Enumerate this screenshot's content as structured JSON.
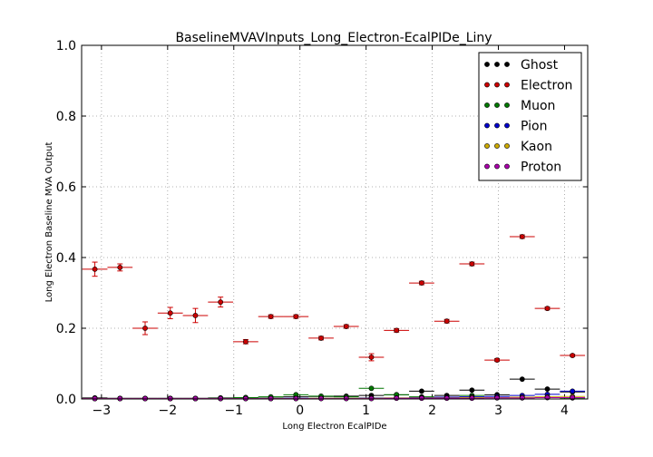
{
  "chart_data": {
    "type": "scatter",
    "title": "BaselineMVAVInputs_Long_Electron-EcalPIDe_Liny",
    "xlabel": "Long Electron EcalPIDe",
    "ylabel": "Long Electron Baseline MVA Output",
    "xlim": [
      -3.3,
      4.35
    ],
    "ylim": [
      0.0,
      1.0
    ],
    "xticks": [
      {
        "value": -3,
        "label": "−3"
      },
      {
        "value": -2,
        "label": "−2"
      },
      {
        "value": -1,
        "label": "−1"
      },
      {
        "value": 0,
        "label": "0"
      },
      {
        "value": 1,
        "label": "1"
      },
      {
        "value": 2,
        "label": "2"
      },
      {
        "value": 3,
        "label": "3"
      },
      {
        "value": 4,
        "label": "4"
      }
    ],
    "yticks": [
      {
        "value": 0.0,
        "label": "0.0"
      },
      {
        "value": 0.2,
        "label": "0.2"
      },
      {
        "value": 0.4,
        "label": "0.4"
      },
      {
        "value": 0.6,
        "label": "0.6"
      },
      {
        "value": 0.8,
        "label": "0.8"
      },
      {
        "value": 1.0,
        "label": "1.0"
      }
    ],
    "grid": true,
    "legend_position": "top-right",
    "x_bin_half_width": 0.19,
    "series": [
      {
        "name": "Ghost",
        "color": "#000000",
        "points": [
          {
            "x": -3.1,
            "y": 0.003
          },
          {
            "x": -2.72,
            "y": 0.002
          },
          {
            "x": -2.34,
            "y": 0.002
          },
          {
            "x": -1.96,
            "y": 0.002
          },
          {
            "x": -1.58,
            "y": 0.002
          },
          {
            "x": -1.2,
            "y": 0.003
          },
          {
            "x": -0.82,
            "y": 0.004
          },
          {
            "x": -0.44,
            "y": 0.005
          },
          {
            "x": -0.06,
            "y": 0.006
          },
          {
            "x": 0.32,
            "y": 0.007
          },
          {
            "x": 0.7,
            "y": 0.008
          },
          {
            "x": 1.08,
            "y": 0.01
          },
          {
            "x": 1.46,
            "y": 0.012
          },
          {
            "x": 1.84,
            "y": 0.022
          },
          {
            "x": 2.22,
            "y": 0.01
          },
          {
            "x": 2.6,
            "y": 0.025
          },
          {
            "x": 2.98,
            "y": 0.012
          },
          {
            "x": 3.36,
            "y": 0.056
          },
          {
            "x": 3.74,
            "y": 0.028
          },
          {
            "x": 4.12,
            "y": 0.02
          }
        ]
      },
      {
        "name": "Electron",
        "color": "#cc0000",
        "points": [
          {
            "x": -3.1,
            "y": 0.367,
            "err": 0.02
          },
          {
            "x": -2.72,
            "y": 0.372,
            "err": 0.01
          },
          {
            "x": -2.34,
            "y": 0.2,
            "err": 0.018
          },
          {
            "x": -1.96,
            "y": 0.243,
            "err": 0.016
          },
          {
            "x": -1.58,
            "y": 0.236,
            "err": 0.02
          },
          {
            "x": -1.2,
            "y": 0.274,
            "err": 0.014
          },
          {
            "x": -0.82,
            "y": 0.162,
            "err": 0.006
          },
          {
            "x": -0.44,
            "y": 0.233,
            "err": 0.005
          },
          {
            "x": -0.06,
            "y": 0.233,
            "err": 0.005
          },
          {
            "x": 0.32,
            "y": 0.172,
            "err": 0.005
          },
          {
            "x": 0.7,
            "y": 0.205,
            "err": 0.005
          },
          {
            "x": 1.08,
            "y": 0.118,
            "err": 0.01
          },
          {
            "x": 1.46,
            "y": 0.194,
            "err": 0.005
          },
          {
            "x": 1.84,
            "y": 0.328,
            "err": 0.005
          },
          {
            "x": 2.22,
            "y": 0.22,
            "err": 0.005
          },
          {
            "x": 2.6,
            "y": 0.382,
            "err": 0.005
          },
          {
            "x": 2.98,
            "y": 0.11,
            "err": 0.004
          },
          {
            "x": 3.36,
            "y": 0.459,
            "err": 0.005
          },
          {
            "x": 3.74,
            "y": 0.256,
            "err": 0.004
          },
          {
            "x": 4.12,
            "y": 0.123,
            "err": 0.003
          }
        ]
      },
      {
        "name": "Muon",
        "color": "#007700",
        "points": [
          {
            "x": -3.1,
            "y": 0.001
          },
          {
            "x": -2.72,
            "y": 0.001
          },
          {
            "x": -2.34,
            "y": 0.001
          },
          {
            "x": -1.96,
            "y": 0.001
          },
          {
            "x": -1.58,
            "y": 0.001
          },
          {
            "x": -1.2,
            "y": 0.002
          },
          {
            "x": -0.82,
            "y": 0.004
          },
          {
            "x": -0.44,
            "y": 0.006
          },
          {
            "x": -0.06,
            "y": 0.012
          },
          {
            "x": 0.32,
            "y": 0.008
          },
          {
            "x": 0.7,
            "y": 0.006
          },
          {
            "x": 1.08,
            "y": 0.03
          },
          {
            "x": 1.46,
            "y": 0.012
          },
          {
            "x": 1.84,
            "y": 0.006
          },
          {
            "x": 2.22,
            "y": 0.004
          },
          {
            "x": 2.6,
            "y": 0.01
          },
          {
            "x": 2.98,
            "y": 0.004
          },
          {
            "x": 3.36,
            "y": 0.004
          },
          {
            "x": 3.74,
            "y": 0.004
          },
          {
            "x": 4.12,
            "y": 0.003
          }
        ]
      },
      {
        "name": "Pion",
        "color": "#0000cc",
        "points": [
          {
            "x": -3.1,
            "y": 0.001
          },
          {
            "x": -2.72,
            "y": 0.001
          },
          {
            "x": -2.34,
            "y": 0.001
          },
          {
            "x": -1.96,
            "y": 0.001
          },
          {
            "x": -1.58,
            "y": 0.001
          },
          {
            "x": -1.2,
            "y": 0.001
          },
          {
            "x": -0.82,
            "y": 0.001
          },
          {
            "x": -0.44,
            "y": 0.001
          },
          {
            "x": -0.06,
            "y": 0.002
          },
          {
            "x": 0.32,
            "y": 0.002
          },
          {
            "x": 0.7,
            "y": 0.002
          },
          {
            "x": 1.08,
            "y": 0.003
          },
          {
            "x": 1.46,
            "y": 0.003
          },
          {
            "x": 1.84,
            "y": 0.004
          },
          {
            "x": 2.22,
            "y": 0.005
          },
          {
            "x": 2.6,
            "y": 0.006
          },
          {
            "x": 2.98,
            "y": 0.007
          },
          {
            "x": 3.36,
            "y": 0.01
          },
          {
            "x": 3.74,
            "y": 0.013
          },
          {
            "x": 4.12,
            "y": 0.022
          }
        ]
      },
      {
        "name": "Kaon",
        "color": "#ccaa00",
        "points": [
          {
            "x": -3.1,
            "y": 0.001
          },
          {
            "x": -2.72,
            "y": 0.001
          },
          {
            "x": -2.34,
            "y": 0.001
          },
          {
            "x": -1.96,
            "y": 0.001
          },
          {
            "x": -1.58,
            "y": 0.001
          },
          {
            "x": -1.2,
            "y": 0.001
          },
          {
            "x": -0.82,
            "y": 0.001
          },
          {
            "x": -0.44,
            "y": 0.001
          },
          {
            "x": -0.06,
            "y": 0.001
          },
          {
            "x": 0.32,
            "y": 0.002
          },
          {
            "x": 0.7,
            "y": 0.002
          },
          {
            "x": 1.08,
            "y": 0.002
          },
          {
            "x": 1.46,
            "y": 0.003
          },
          {
            "x": 1.84,
            "y": 0.003
          },
          {
            "x": 2.22,
            "y": 0.003
          },
          {
            "x": 2.6,
            "y": 0.004
          },
          {
            "x": 2.98,
            "y": 0.004
          },
          {
            "x": 3.36,
            "y": 0.005
          },
          {
            "x": 3.74,
            "y": 0.006
          },
          {
            "x": 4.12,
            "y": 0.007
          }
        ]
      },
      {
        "name": "Proton",
        "color": "#aa00aa",
        "points": [
          {
            "x": -3.1,
            "y": 0.001
          },
          {
            "x": -2.72,
            "y": 0.001
          },
          {
            "x": -2.34,
            "y": 0.001
          },
          {
            "x": -1.96,
            "y": 0.001
          },
          {
            "x": -1.58,
            "y": 0.001
          },
          {
            "x": -1.2,
            "y": 0.001
          },
          {
            "x": -0.82,
            "y": 0.001
          },
          {
            "x": -0.44,
            "y": 0.001
          },
          {
            "x": -0.06,
            "y": 0.001
          },
          {
            "x": 0.32,
            "y": 0.001
          },
          {
            "x": 0.7,
            "y": 0.001
          },
          {
            "x": 1.08,
            "y": 0.001
          },
          {
            "x": 1.46,
            "y": 0.002
          },
          {
            "x": 1.84,
            "y": 0.002
          },
          {
            "x": 2.22,
            "y": 0.002
          },
          {
            "x": 2.6,
            "y": 0.002
          },
          {
            "x": 2.98,
            "y": 0.003
          },
          {
            "x": 3.36,
            "y": 0.003
          },
          {
            "x": 3.74,
            "y": 0.004
          },
          {
            "x": 4.12,
            "y": 0.004
          }
        ]
      }
    ]
  }
}
